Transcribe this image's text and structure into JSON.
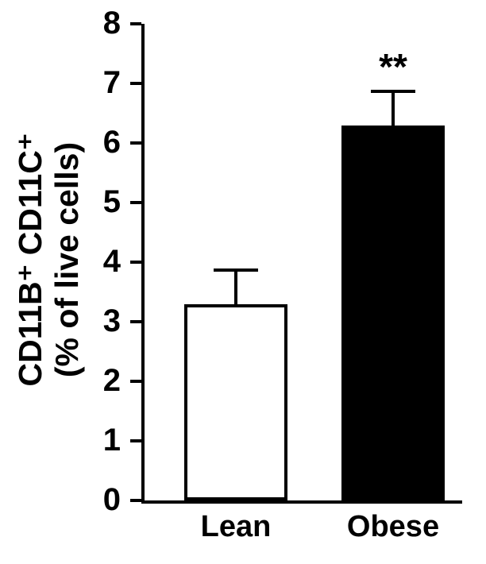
{
  "chart_data": {
    "type": "bar",
    "categories": [
      "Lean",
      "Obese"
    ],
    "values": [
      3.3,
      6.3
    ],
    "errors": [
      0.6,
      0.6
    ],
    "bar_colors": [
      "#ffffff",
      "#000000"
    ],
    "bar_border_color": "#000000",
    "annotations": [
      {
        "category": "Obese",
        "text": "**"
      }
    ],
    "title": "",
    "xlabel": "",
    "ylabel_lines": [
      "CD11B⁺ CD11C⁺",
      "(% of live cells)"
    ],
    "ylim": [
      0,
      8
    ],
    "yticks": [
      0,
      1,
      2,
      3,
      4,
      5,
      6,
      7,
      8
    ],
    "grid": false,
    "legend": "none"
  }
}
